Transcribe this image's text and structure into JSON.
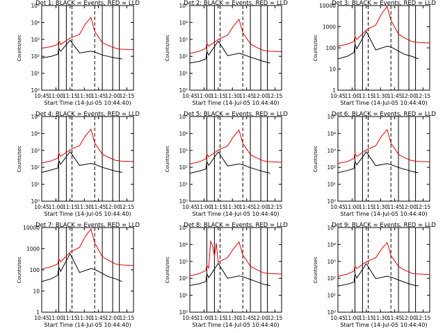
{
  "chart_data": {
    "type": "line",
    "xlabel": "Start Time (14-Jul-05 10:44:40)",
    "ylabel": "Counts/sec",
    "x_ticks": [
      "10:45",
      "11:00",
      "11:15",
      "11:30",
      "11:45",
      "12:00",
      "12:15"
    ],
    "x_range_min": [
      0,
      97
    ],
    "series_legend": {
      "black": "Events",
      "red": "LLD"
    },
    "colors": {
      "black": "#000000",
      "red": "#dd0000"
    },
    "y_scale": "log",
    "vertical_markers": {
      "solid_min": [
        18,
        26,
        64,
        75,
        82
      ],
      "dashed_min": [
        32,
        56
      ]
    },
    "panels": [
      {
        "title": "Det 1: BLACK = Events, RED = LLD",
        "ylim": [
          1,
          100000
        ],
        "y_ticks": [
          "10⁰",
          "10¹",
          "10²",
          "10³",
          "10⁴",
          "10⁵"
        ],
        "red": [
          [
            0,
            300
          ],
          [
            10,
            380
          ],
          [
            17,
            500
          ],
          [
            18,
            800
          ],
          [
            20,
            500
          ],
          [
            30,
            1200
          ],
          [
            40,
            2000
          ],
          [
            46,
            8000
          ],
          [
            52,
            20000
          ],
          [
            56,
            3000
          ],
          [
            64,
            650
          ],
          [
            70,
            450
          ],
          [
            78,
            300
          ],
          [
            85,
            260
          ],
          [
            97,
            250
          ]
        ],
        "black": [
          [
            0,
            80
          ],
          [
            10,
            100
          ],
          [
            17,
            130
          ],
          [
            18,
            300
          ],
          [
            20,
            200
          ],
          [
            30,
            900
          ],
          [
            40,
            160
          ],
          [
            52,
            200
          ],
          [
            56,
            180
          ],
          [
            64,
            120
          ],
          [
            70,
            100
          ],
          [
            78,
            80
          ],
          [
            85,
            70
          ]
        ]
      },
      {
        "title": "Det 2: BLACK = Events, RED = LLD",
        "ylim": [
          1,
          100000
        ],
        "y_ticks": [
          "10⁰",
          "10¹",
          "10²",
          "10³",
          "10⁴",
          "10⁵"
        ],
        "red": [
          [
            0,
            150
          ],
          [
            10,
            200
          ],
          [
            17,
            300
          ],
          [
            18,
            600
          ],
          [
            20,
            400
          ],
          [
            30,
            1000
          ],
          [
            40,
            1800
          ],
          [
            46,
            6000
          ],
          [
            52,
            15000
          ],
          [
            56,
            2500
          ],
          [
            64,
            550
          ],
          [
            70,
            350
          ],
          [
            78,
            220
          ],
          [
            85,
            200
          ],
          [
            97,
            190
          ]
        ],
        "black": [
          [
            0,
            40
          ],
          [
            10,
            50
          ],
          [
            17,
            70
          ],
          [
            18,
            200
          ],
          [
            20,
            120
          ],
          [
            30,
            800
          ],
          [
            40,
            110
          ],
          [
            52,
            150
          ],
          [
            56,
            130
          ],
          [
            64,
            90
          ],
          [
            70,
            70
          ],
          [
            78,
            50
          ],
          [
            85,
            40
          ]
        ]
      },
      {
        "title": "Det 3: BLACK = Events, RED = LLD",
        "ylim": [
          1,
          10000
        ],
        "y_ticks": [
          "1",
          "10",
          "100",
          "1000",
          "10000"
        ],
        "red": [
          [
            0,
            120
          ],
          [
            10,
            150
          ],
          [
            17,
            200
          ],
          [
            18,
            350
          ],
          [
            20,
            250
          ],
          [
            30,
            700
          ],
          [
            40,
            1200
          ],
          [
            46,
            4000
          ],
          [
            52,
            9000
          ],
          [
            56,
            2000
          ],
          [
            64,
            450
          ],
          [
            70,
            300
          ],
          [
            78,
            200
          ],
          [
            85,
            180
          ],
          [
            97,
            170
          ]
        ],
        "black": [
          [
            0,
            30
          ],
          [
            10,
            40
          ],
          [
            17,
            60
          ],
          [
            18,
            150
          ],
          [
            20,
            90
          ],
          [
            30,
            600
          ],
          [
            40,
            80
          ],
          [
            52,
            120
          ],
          [
            56,
            110
          ],
          [
            64,
            70
          ],
          [
            70,
            50
          ],
          [
            78,
            40
          ],
          [
            85,
            30
          ]
        ]
      },
      {
        "title": "Det 4: BLACK = Events, RED = LLD",
        "ylim": [
          1,
          100000
        ],
        "y_ticks": [
          "10⁰",
          "10¹",
          "10²",
          "10³",
          "10⁴",
          "10⁵"
        ],
        "red": [
          [
            0,
            180
          ],
          [
            10,
            240
          ],
          [
            17,
            350
          ],
          [
            18,
            700
          ],
          [
            20,
            450
          ],
          [
            30,
            1100
          ],
          [
            40,
            1900
          ],
          [
            46,
            7000
          ],
          [
            52,
            18000
          ],
          [
            56,
            2800
          ],
          [
            64,
            600
          ],
          [
            70,
            400
          ],
          [
            78,
            260
          ],
          [
            85,
            230
          ],
          [
            97,
            220
          ]
        ],
        "black": [
          [
            0,
            50
          ],
          [
            10,
            70
          ],
          [
            17,
            90
          ],
          [
            18,
            250
          ],
          [
            20,
            150
          ],
          [
            30,
            850
          ],
          [
            40,
            130
          ],
          [
            52,
            170
          ],
          [
            56,
            150
          ],
          [
            64,
            100
          ],
          [
            70,
            80
          ],
          [
            78,
            60
          ],
          [
            85,
            50
          ]
        ]
      },
      {
        "title": "Det 5: BLACK = Events, RED = LLD",
        "ylim": [
          1,
          100000
        ],
        "y_ticks": [
          "10⁰",
          "10¹",
          "10²",
          "10³",
          "10⁴",
          "10⁵"
        ],
        "red": [
          [
            0,
            160
          ],
          [
            10,
            210
          ],
          [
            17,
            320
          ],
          [
            18,
            650
          ],
          [
            20,
            420
          ],
          [
            30,
            1050
          ],
          [
            40,
            1850
          ],
          [
            46,
            6500
          ],
          [
            52,
            16000
          ],
          [
            56,
            2600
          ],
          [
            64,
            580
          ],
          [
            70,
            370
          ],
          [
            78,
            240
          ],
          [
            85,
            210
          ],
          [
            97,
            200
          ]
        ],
        "black": [
          [
            0,
            45
          ],
          [
            10,
            60
          ],
          [
            17,
            80
          ],
          [
            18,
            220
          ],
          [
            20,
            130
          ],
          [
            30,
            820
          ],
          [
            40,
            120
          ],
          [
            52,
            160
          ],
          [
            56,
            140
          ],
          [
            64,
            95
          ],
          [
            70,
            75
          ],
          [
            78,
            55
          ],
          [
            85,
            45
          ]
        ]
      },
      {
        "title": "Det 6: BLACK = Events, RED = LLD",
        "ylim": [
          1,
          100000
        ],
        "y_ticks": [
          "10⁰",
          "10¹",
          "10²",
          "10³",
          "10⁴",
          "10⁵"
        ],
        "red": [
          [
            0,
            170
          ],
          [
            10,
            220
          ],
          [
            17,
            330
          ],
          [
            18,
            680
          ],
          [
            20,
            430
          ],
          [
            30,
            1080
          ],
          [
            40,
            1880
          ],
          [
            46,
            6800
          ],
          [
            52,
            17000
          ],
          [
            56,
            2700
          ],
          [
            64,
            590
          ],
          [
            70,
            380
          ],
          [
            78,
            250
          ],
          [
            85,
            220
          ],
          [
            97,
            210
          ]
        ],
        "black": [
          [
            0,
            48
          ],
          [
            10,
            65
          ],
          [
            17,
            85
          ],
          [
            18,
            230
          ],
          [
            20,
            140
          ],
          [
            30,
            830
          ],
          [
            40,
            125
          ],
          [
            52,
            165
          ],
          [
            56,
            145
          ],
          [
            64,
            98
          ],
          [
            70,
            78
          ],
          [
            78,
            58
          ],
          [
            85,
            48
          ]
        ]
      },
      {
        "title": "Det 7: BLACK = Events, RED = LLD",
        "ylim": [
          1,
          10000
        ],
        "y_ticks": [
          "1",
          "10",
          "100",
          "1000",
          "10000"
        ],
        "red": [
          [
            0,
            110
          ],
          [
            10,
            140
          ],
          [
            17,
            190
          ],
          [
            18,
            340
          ],
          [
            20,
            240
          ],
          [
            30,
            680
          ],
          [
            40,
            1150
          ],
          [
            46,
            3800
          ],
          [
            52,
            8500
          ],
          [
            56,
            1900
          ],
          [
            64,
            430
          ],
          [
            70,
            290
          ],
          [
            78,
            190
          ],
          [
            85,
            170
          ],
          [
            97,
            160
          ]
        ],
        "black": [
          [
            0,
            28
          ],
          [
            10,
            38
          ],
          [
            17,
            55
          ],
          [
            18,
            140
          ],
          [
            20,
            85
          ],
          [
            30,
            580
          ],
          [
            40,
            75
          ],
          [
            52,
            115
          ],
          [
            56,
            105
          ],
          [
            64,
            68
          ],
          [
            70,
            48
          ],
          [
            78,
            38
          ],
          [
            85,
            28
          ]
        ]
      },
      {
        "title": "Det 8: BLACK = Events, RED = LLD",
        "ylim": [
          1,
          100000
        ],
        "y_ticks": [
          "10⁰",
          "10¹",
          "10²",
          "10³",
          "10⁴",
          "10⁵"
        ],
        "red": [
          [
            0,
            140
          ],
          [
            10,
            190
          ],
          [
            17,
            290
          ],
          [
            18,
            600
          ],
          [
            20,
            400
          ],
          [
            22,
            15000
          ],
          [
            24,
            9000
          ],
          [
            26,
            2000
          ],
          [
            28,
            12000
          ],
          [
            30,
            900
          ],
          [
            40,
            1700
          ],
          [
            46,
            5500
          ],
          [
            52,
            14000
          ],
          [
            56,
            2400
          ],
          [
            64,
            520
          ],
          [
            70,
            340
          ],
          [
            78,
            210
          ],
          [
            85,
            190
          ],
          [
            97,
            180
          ]
        ],
        "black": [
          [
            0,
            38
          ],
          [
            10,
            48
          ],
          [
            17,
            65
          ],
          [
            18,
            190
          ],
          [
            20,
            110
          ],
          [
            30,
            760
          ],
          [
            40,
            100
          ],
          [
            52,
            140
          ],
          [
            56,
            125
          ],
          [
            64,
            85
          ],
          [
            70,
            65
          ],
          [
            78,
            45
          ],
          [
            85,
            38
          ]
        ]
      },
      {
        "title": "Det 9: BLACK = Events, RED = LLD",
        "ylim": [
          1,
          100000
        ],
        "y_ticks": [
          "10⁰",
          "10¹",
          "10²",
          "10³",
          "10⁴",
          "10⁵"
        ],
        "red": [
          [
            0,
            130
          ],
          [
            10,
            180
          ],
          [
            17,
            270
          ],
          [
            18,
            550
          ],
          [
            20,
            380
          ],
          [
            30,
            950
          ],
          [
            40,
            1650
          ],
          [
            46,
            5200
          ],
          [
            52,
            13000
          ],
          [
            56,
            2300
          ],
          [
            64,
            500
          ],
          [
            70,
            320
          ],
          [
            78,
            200
          ],
          [
            85,
            180
          ],
          [
            97,
            170
          ]
        ],
        "black": [
          [
            0,
            35
          ],
          [
            10,
            45
          ],
          [
            17,
            60
          ],
          [
            18,
            180
          ],
          [
            20,
            105
          ],
          [
            30,
            740
          ],
          [
            40,
            95
          ],
          [
            52,
            135
          ],
          [
            56,
            120
          ],
          [
            64,
            80
          ],
          [
            70,
            60
          ],
          [
            78,
            42
          ],
          [
            85,
            35
          ]
        ]
      }
    ]
  }
}
